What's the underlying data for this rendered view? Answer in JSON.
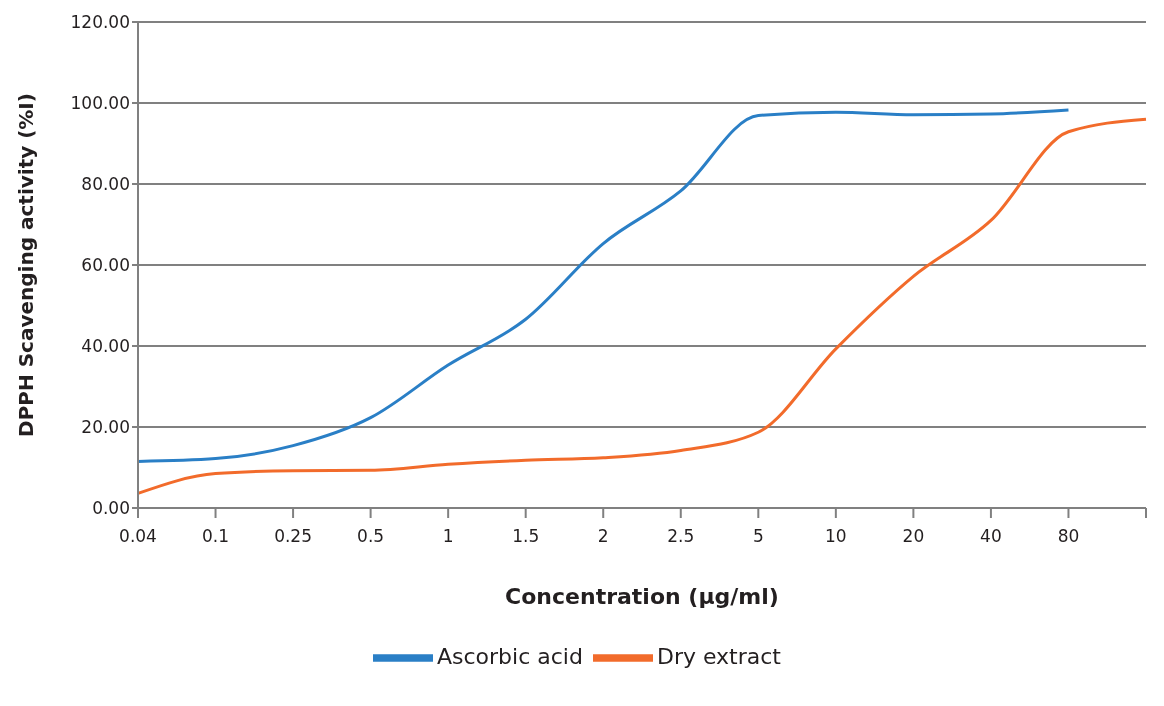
{
  "chart_data": {
    "type": "line",
    "xlabel": "Concentration (µg/ml)",
    "ylabel": "DPPH Scavenging activity (%I)",
    "categories": [
      "0.04",
      "0.1",
      "0.25",
      "0.5",
      "1",
      "1.5",
      "2",
      "2.5",
      "5",
      "10",
      "20",
      "40",
      "80",
      null
    ],
    "series": [
      {
        "name": "Ascorbic acid",
        "color": "#2a7fc6",
        "values": [
          11.5,
          12.2,
          15.4,
          22.3,
          35.3,
          46.6,
          65.3,
          78.3,
          96.9,
          97.7,
          97.1,
          97.3,
          98.3,
          null
        ]
      },
      {
        "name": "Dry extract",
        "color": "#f26b2b",
        "values": [
          3.6,
          8.5,
          9.2,
          9.3,
          10.8,
          11.8,
          12.4,
          14.2,
          18.7,
          39.3,
          57.2,
          71,
          92.9,
          96
        ]
      }
    ],
    "ylim": [
      0,
      120
    ],
    "yticks": [
      {
        "value": 0,
        "label": "0.00"
      },
      {
        "value": 20,
        "label": "20.00"
      },
      {
        "value": 40,
        "label": "40.00"
      },
      {
        "value": 60,
        "label": "60.00"
      },
      {
        "value": 80,
        "label": "80.00"
      },
      {
        "value": 100,
        "label": "100.00"
      },
      {
        "value": 120,
        "label": "120.00"
      }
    ],
    "grid": "y",
    "legend": "bottom",
    "marker": "none",
    "line_style": "solid"
  }
}
